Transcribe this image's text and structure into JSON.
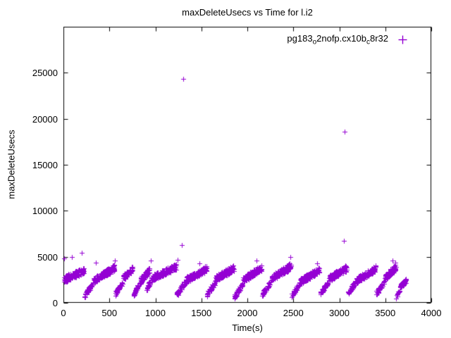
{
  "page": {
    "background": "#ffffff"
  },
  "chart_data": {
    "type": "scatter",
    "title": "maxDeleteUsecs vs Time for l.i2",
    "xlabel": "Time(s)",
    "ylabel": "maxDeleteUsecs",
    "xlim": [
      0,
      4000
    ],
    "ylim": [
      0,
      30000
    ],
    "x_ticks": [
      0,
      500,
      1000,
      1500,
      2000,
      2500,
      3000,
      3500,
      4000
    ],
    "y_ticks": [
      0,
      5000,
      10000,
      15000,
      20000,
      25000
    ],
    "grid": false,
    "legend_position": "top-right",
    "series": [
      {
        "name": "pg183_o2nofp.cx10b_c8r32",
        "label_parts": [
          {
            "text": "pg183"
          },
          {
            "text": "o",
            "sub": true
          },
          {
            "text": "2nofp.cx10b"
          },
          {
            "text": "c",
            "sub": true
          },
          {
            "text": "8r32"
          }
        ],
        "marker": "plus",
        "color": "#9400d3",
        "bands": [
          [
            5,
            225,
            2550,
            3500,
            150,
            350
          ],
          [
            228,
            320,
            700,
            2100,
            45,
            250
          ],
          [
            330,
            555,
            2400,
            3850,
            150,
            350
          ],
          [
            560,
            645,
            900,
            2200,
            40,
            250
          ],
          [
            650,
            755,
            2700,
            3700,
            70,
            300
          ],
          [
            758,
            815,
            700,
            1900,
            35,
            220
          ],
          [
            820,
            935,
            2200,
            3500,
            70,
            350
          ],
          [
            900,
            965,
            1500,
            2600,
            30,
            250
          ],
          [
            965,
            1225,
            2700,
            3900,
            150,
            350
          ],
          [
            1230,
            1320,
            800,
            2200,
            45,
            250
          ],
          [
            1325,
            1555,
            2400,
            3700,
            140,
            350
          ],
          [
            1560,
            1650,
            900,
            2200,
            40,
            250
          ],
          [
            1655,
            1855,
            2600,
            3800,
            120,
            350
          ],
          [
            1858,
            1950,
            600,
            2100,
            45,
            250
          ],
          [
            1955,
            2155,
            2500,
            3800,
            120,
            350
          ],
          [
            2160,
            2250,
            900,
            2200,
            40,
            250
          ],
          [
            2255,
            2475,
            2600,
            4000,
            140,
            350
          ],
          [
            2480,
            2570,
            700,
            2100,
            45,
            250
          ],
          [
            2575,
            2785,
            2300,
            3600,
            130,
            350
          ],
          [
            2790,
            2880,
            1000,
            2200,
            40,
            250
          ],
          [
            2885,
            3085,
            2600,
            3800,
            130,
            350
          ],
          [
            3090,
            3180,
            900,
            2300,
            40,
            250
          ],
          [
            3185,
            3395,
            2400,
            3700,
            130,
            350
          ],
          [
            3400,
            3490,
            1000,
            2300,
            40,
            250
          ],
          [
            3495,
            3615,
            2700,
            3900,
            80,
            350
          ],
          [
            3620,
            3660,
            600,
            1500,
            15,
            200
          ],
          [
            3655,
            3725,
            1700,
            2400,
            40,
            250
          ]
        ],
        "outliers": [
          [
            10,
            4800
          ],
          [
            95,
            5000
          ],
          [
            200,
            5450
          ],
          [
            350,
            4400
          ],
          [
            560,
            4600
          ],
          [
            950,
            4600
          ],
          [
            1240,
            4700
          ],
          [
            1285,
            6300
          ],
          [
            1300,
            24300
          ],
          [
            1480,
            4300
          ],
          [
            2100,
            4600
          ],
          [
            2470,
            5000
          ],
          [
            2760,
            4300
          ],
          [
            3050,
            6700
          ],
          [
            3060,
            18600
          ],
          [
            3580,
            4600
          ],
          [
            3610,
            4400
          ]
        ]
      }
    ]
  }
}
